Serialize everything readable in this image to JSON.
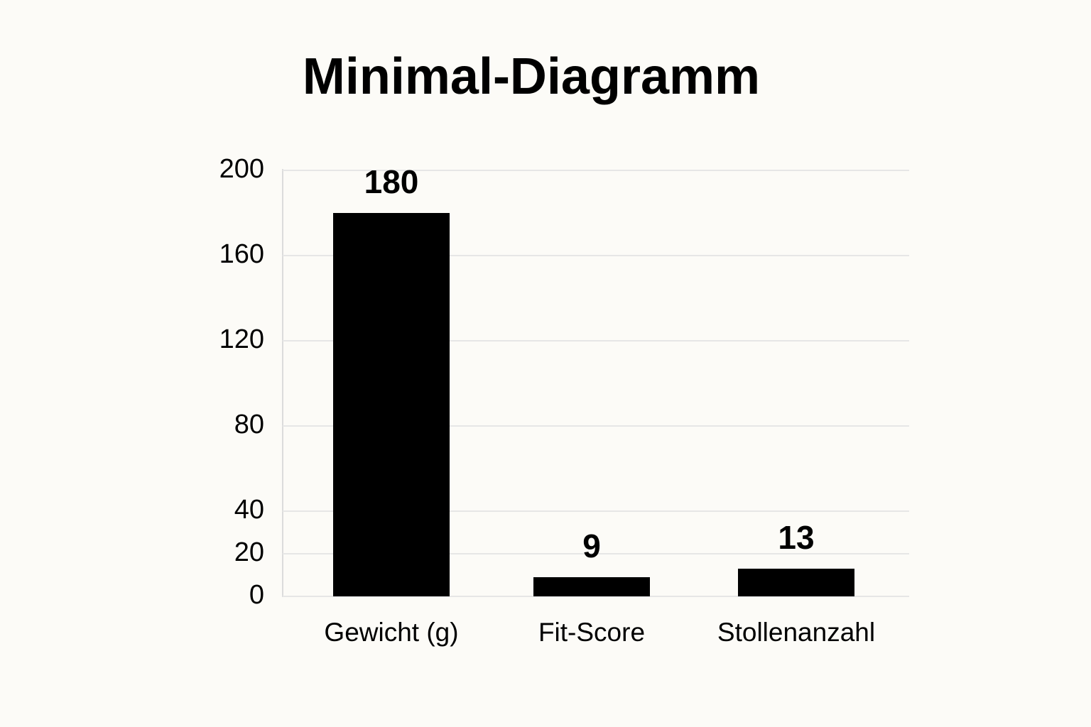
{
  "chart_data": {
    "type": "bar",
    "title": "Minimal-Diagramm",
    "categories": [
      "Gewicht (g)",
      "Fit-Score",
      "Stollenanzahl"
    ],
    "values": [
      180,
      9,
      13
    ],
    "color": "#000000",
    "ylim": [
      0,
      200
    ],
    "yticks": [
      0,
      20,
      40,
      80,
      120,
      160,
      200
    ],
    "grid": true
  }
}
